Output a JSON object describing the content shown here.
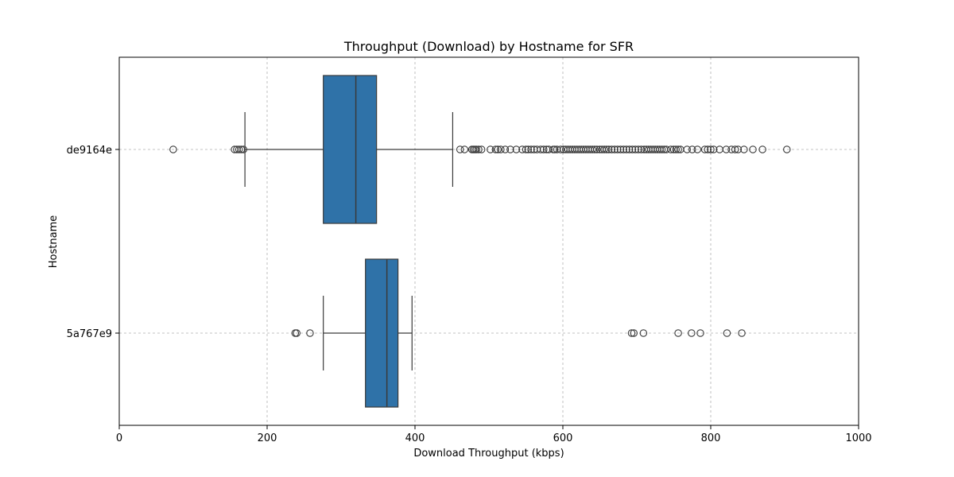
{
  "chart_data": {
    "type": "boxplot",
    "orientation": "horizontal",
    "title": "Throughput (Download) by Hostname for SFR",
    "xlabel": "Download Throughput (kbps)",
    "ylabel": "Hostname",
    "xlim": [
      0,
      1000
    ],
    "xticks": [
      0,
      200,
      400,
      600,
      800,
      1000
    ],
    "grid": true,
    "box_color": "#2f72a8",
    "series": [
      {
        "category": "de9164e",
        "whisker_low": 170,
        "q1": 276,
        "median": 320,
        "q3": 348,
        "whisker_high": 451,
        "outliers": [
          73,
          156,
          159,
          162,
          165,
          168,
          461,
          467,
          477,
          479,
          481,
          483,
          486,
          490,
          502,
          509,
          512,
          516,
          522,
          529,
          537,
          545,
          550,
          553,
          557,
          561,
          565,
          570,
          574,
          578,
          581,
          587,
          589,
          592,
          597,
          601,
          604,
          607,
          610,
          613,
          616,
          619,
          622,
          625,
          628,
          631,
          634,
          637,
          640,
          643,
          646,
          650,
          653,
          656,
          659,
          662,
          666,
          670,
          674,
          678,
          682,
          686,
          690,
          694,
          698,
          702,
          706,
          710,
          713,
          716,
          719,
          722,
          725,
          728,
          731,
          734,
          737,
          740,
          746,
          750,
          753,
          756,
          759,
          768,
          775,
          782,
          792,
          796,
          800,
          804,
          812,
          821,
          828,
          833,
          837,
          845,
          857,
          870,
          903
        ]
      },
      {
        "category": "5a767e9",
        "whisker_low": 276,
        "q1": 333,
        "median": 362,
        "q3": 377,
        "whisker_high": 396,
        "outliers": [
          238,
          240,
          258,
          693,
          696,
          709,
          756,
          774,
          786,
          822,
          842
        ]
      }
    ]
  }
}
